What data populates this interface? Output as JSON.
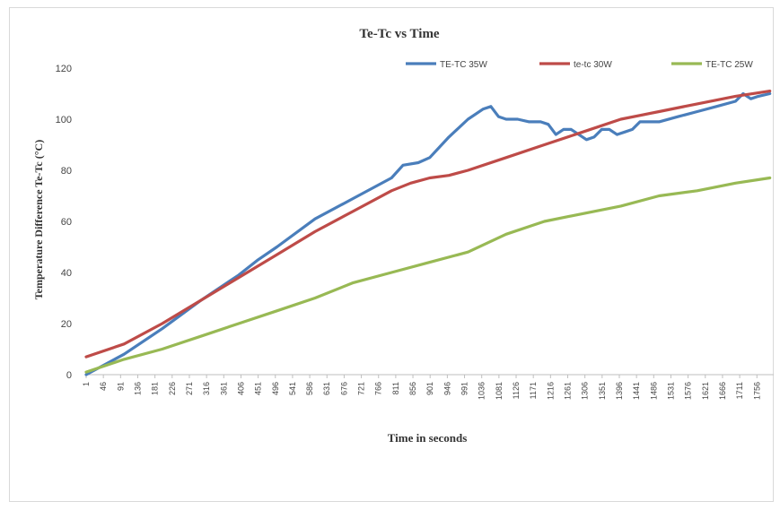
{
  "chart_data": {
    "type": "line",
    "title": "Te-Tc  vs Time",
    "xlabel": "Time in seconds",
    "ylabel": "Temperature Difference Te-Tc (°C)",
    "ylim": [
      0,
      120
    ],
    "yticks": [
      0,
      20,
      40,
      60,
      80,
      100,
      120
    ],
    "x_tick_labels": [
      "1",
      "46",
      "91",
      "136",
      "181",
      "226",
      "271",
      "316",
      "361",
      "406",
      "451",
      "496",
      "541",
      "586",
      "631",
      "676",
      "721",
      "766",
      "811",
      "856",
      "901",
      "946",
      "991",
      "1036",
      "1081",
      "1126",
      "1171",
      "1216",
      "1261",
      "1306",
      "1351",
      "1396",
      "1441",
      "1486",
      "1531",
      "1576",
      "1621",
      "1666",
      "1711",
      "1756"
    ],
    "xlim": [
      1,
      1800
    ],
    "grid": false,
    "legend_position": "top",
    "series": [
      {
        "name": "TE-TC 35W",
        "color": "#4a7ebb",
        "x": [
          1,
          100,
          200,
          300,
          400,
          451,
          500,
          600,
          700,
          800,
          830,
          870,
          900,
          950,
          1000,
          1040,
          1060,
          1080,
          1100,
          1130,
          1160,
          1190,
          1210,
          1230,
          1250,
          1270,
          1290,
          1310,
          1330,
          1350,
          1370,
          1390,
          1410,
          1430,
          1450,
          1470,
          1500,
          1550,
          1600,
          1650,
          1700,
          1720,
          1740,
          1760,
          1790
        ],
        "y": [
          0,
          8,
          18,
          29,
          39,
          45,
          50,
          61,
          69,
          77,
          82,
          83,
          85,
          93,
          100,
          104,
          105,
          101,
          100,
          100,
          99,
          99,
          98,
          94,
          96,
          96,
          94,
          92,
          93,
          96,
          96,
          94,
          95,
          96,
          99,
          99,
          99,
          101,
          103,
          105,
          107,
          110,
          108,
          109,
          110
        ]
      },
      {
        "name": "te-tc  30W",
        "color": "#be4b48",
        "x": [
          1,
          100,
          200,
          300,
          400,
          500,
          600,
          700,
          800,
          850,
          900,
          950,
          1000,
          1100,
          1200,
          1300,
          1400,
          1500,
          1600,
          1700,
          1790
        ],
        "y": [
          7,
          12,
          20,
          29,
          38,
          47,
          56,
          64,
          72,
          75,
          77,
          78,
          80,
          85,
          90,
          95,
          100,
          103,
          106,
          109,
          111
        ]
      },
      {
        "name": "TE-TC  25W",
        "color": "#98b954",
        "x": [
          1,
          100,
          200,
          300,
          400,
          500,
          600,
          700,
          800,
          900,
          1000,
          1100,
          1200,
          1300,
          1400,
          1500,
          1600,
          1700,
          1790
        ],
        "y": [
          1,
          6,
          10,
          15,
          20,
          25,
          30,
          36,
          40,
          44,
          48,
          55,
          60,
          63,
          66,
          70,
          72,
          75,
          77
        ]
      }
    ]
  }
}
